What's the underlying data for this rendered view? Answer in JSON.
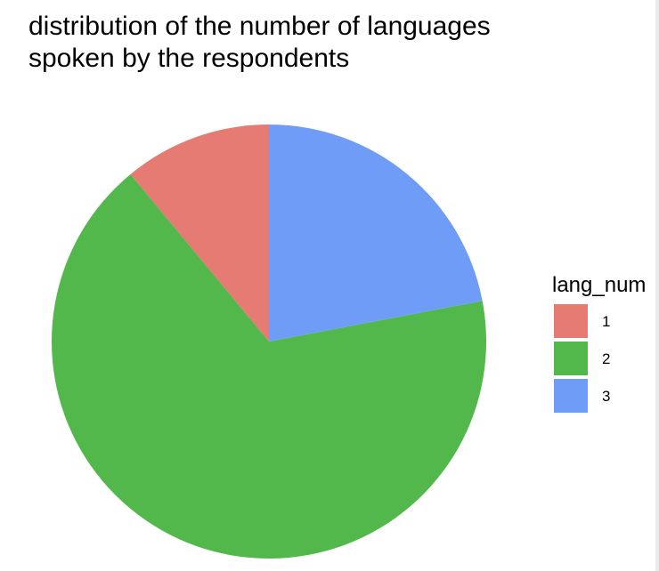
{
  "chart_data": {
    "type": "pie",
    "title": "distribution of the number of languages\nspoken by the respondents",
    "categories": [
      "1",
      "2",
      "3"
    ],
    "values": [
      11,
      67,
      22
    ],
    "colors": [
      "#E57B72",
      "#53B84B",
      "#6F9CF7"
    ],
    "legend": {
      "title": "lang_num",
      "placement": "right"
    }
  }
}
